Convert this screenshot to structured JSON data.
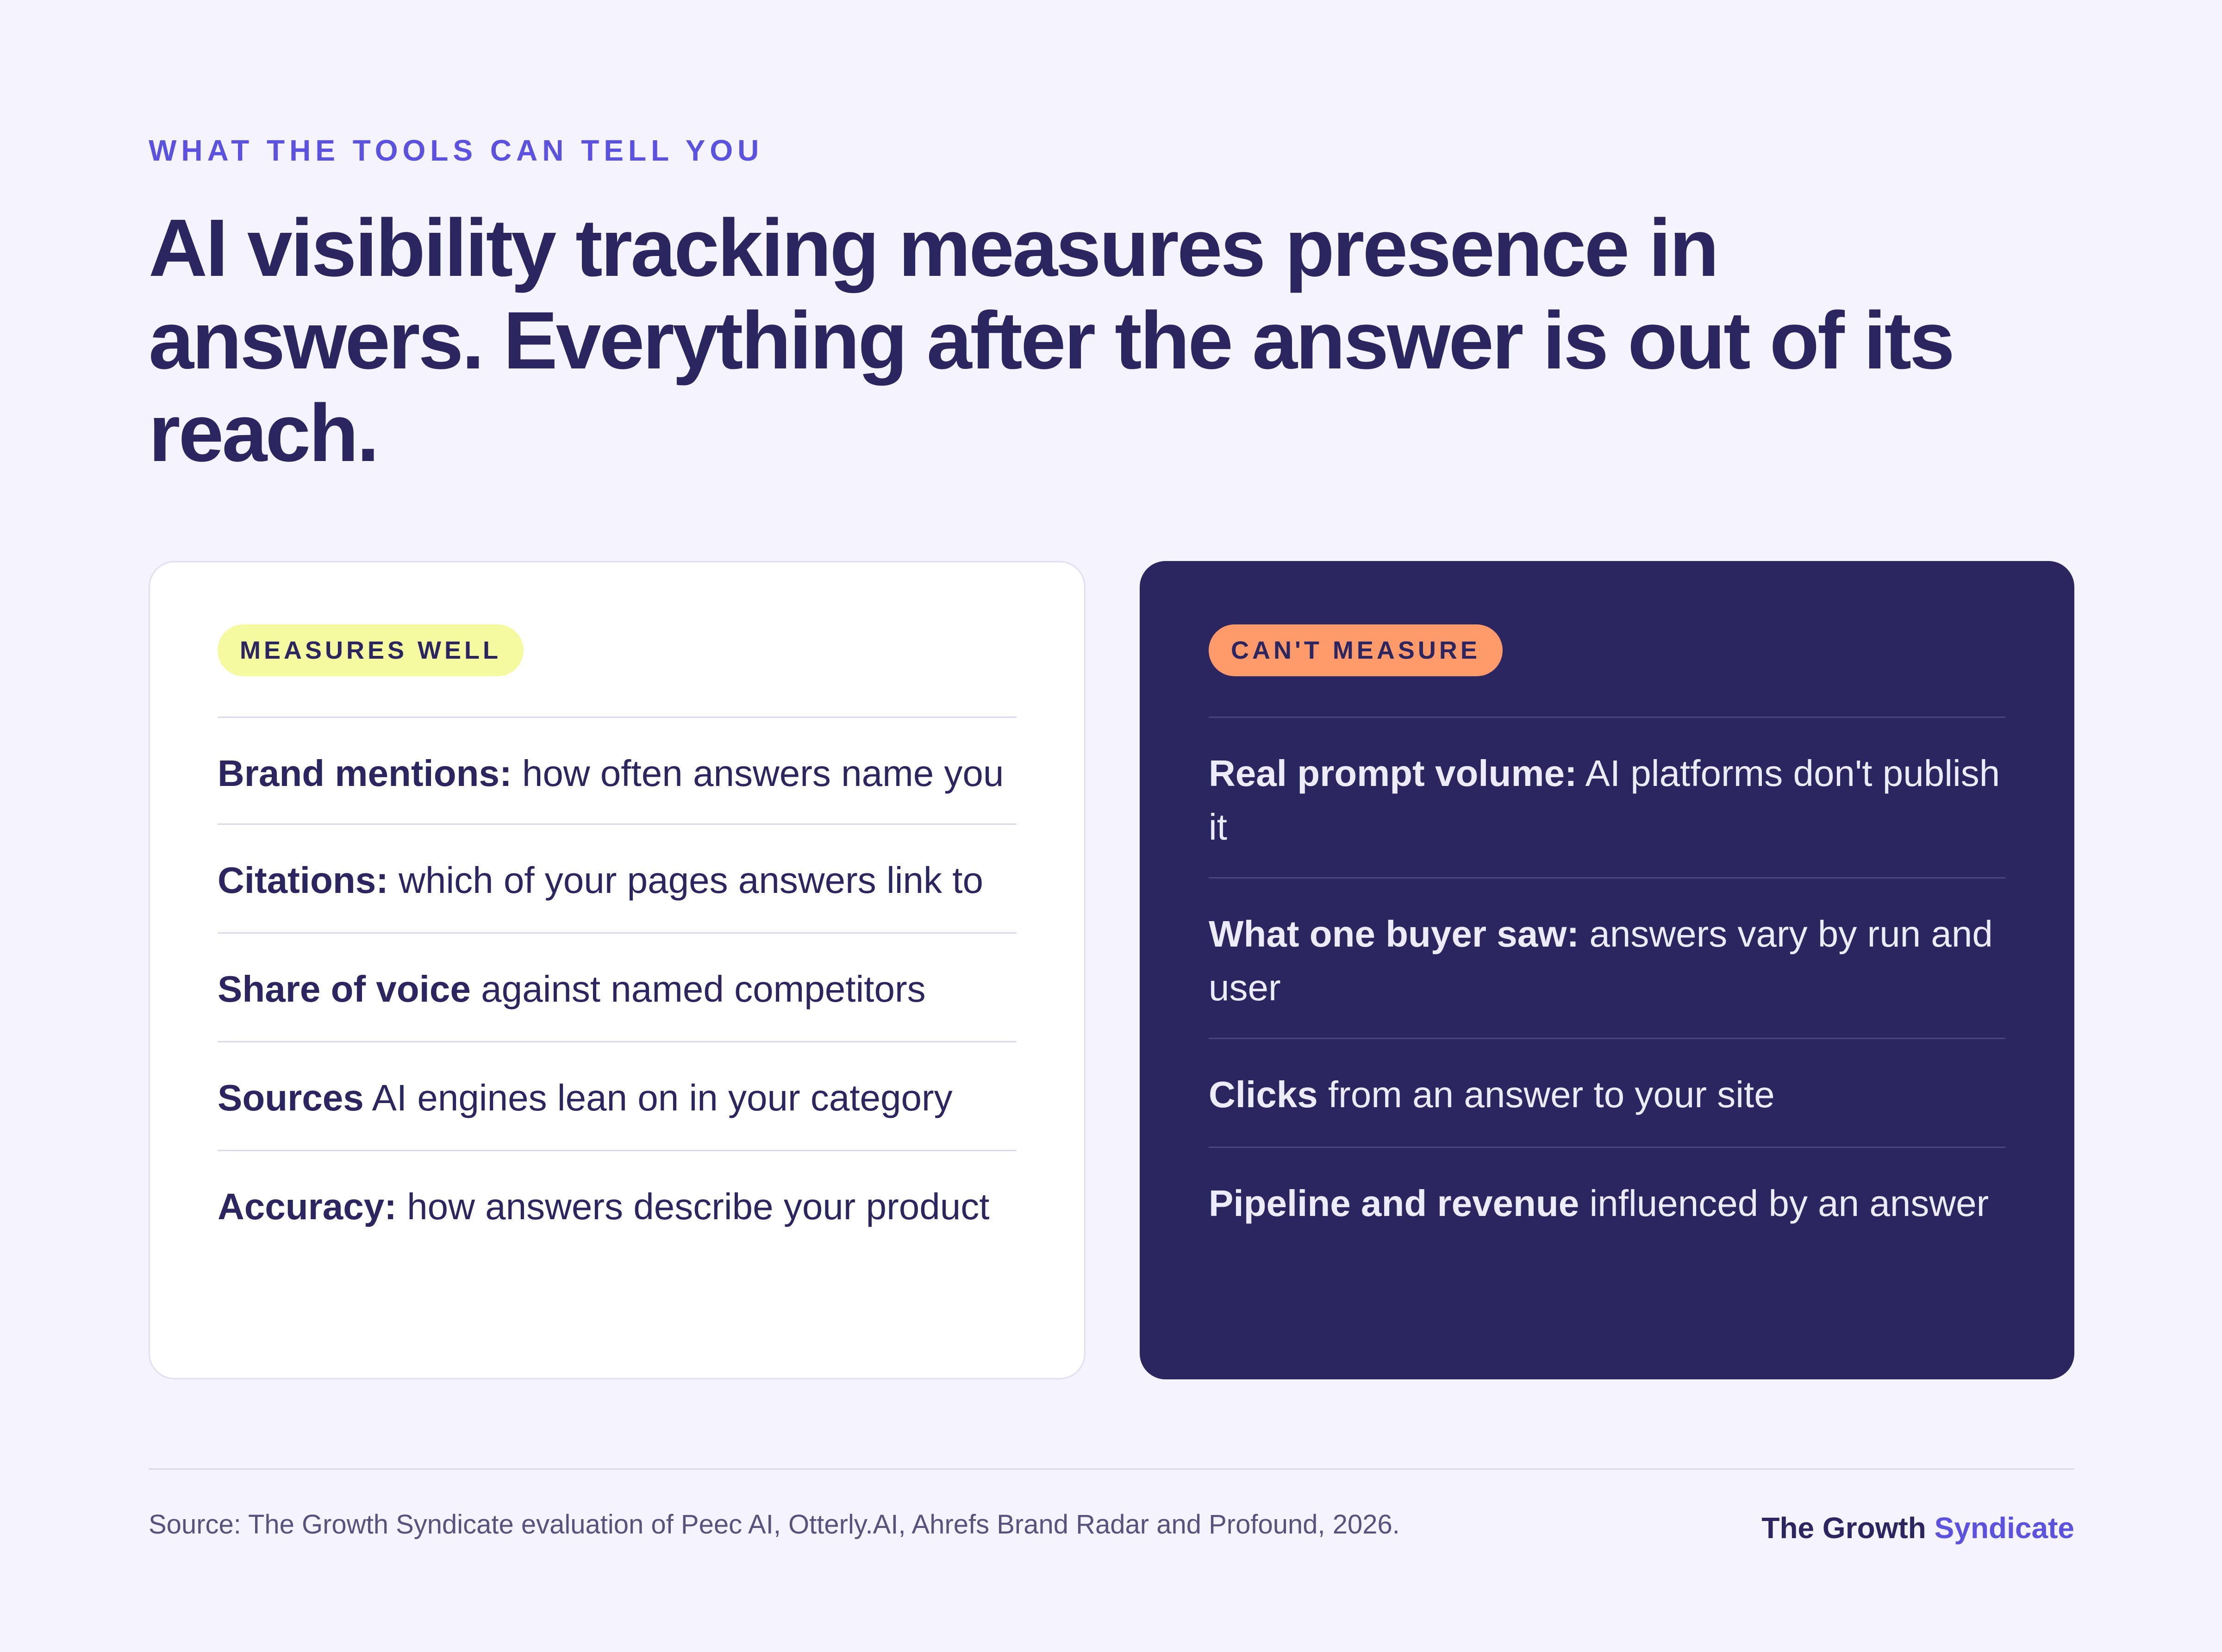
{
  "eyebrow": "WHAT THE TOOLS CAN TELL YOU",
  "headline": "AI visibility tracking measures presence in answers. Everything after the answer is out of its reach.",
  "measures_well": {
    "badge": "MEASURES WELL",
    "items": [
      {
        "term": "Brand mentions:",
        "rest": " how often answers name you"
      },
      {
        "term": "Citations:",
        "rest": " which of your pages answers link to"
      },
      {
        "term": "Share of voice",
        "rest": " against named competitors"
      },
      {
        "term": "Sources",
        "rest": " AI engines lean on in your category"
      },
      {
        "term": "Accuracy:",
        "rest": " how answers describe your product"
      }
    ]
  },
  "cant_measure": {
    "badge": "CAN'T MEASURE",
    "items": [
      {
        "term": "Real prompt volume:",
        "rest": " AI platforms don't publish it"
      },
      {
        "term": "What one buyer saw:",
        "rest": " answers vary by run and user"
      },
      {
        "term": "Clicks",
        "rest": " from an answer to your site"
      },
      {
        "term": "Pipeline and revenue",
        "rest": " influenced by an answer"
      }
    ]
  },
  "footer": {
    "source": "Source: The Growth Syndicate evaluation of Peec AI, Otterly.AI, Ahrefs Brand Radar and Profound, 2026.",
    "brand_part1": "The Growth",
    "brand_part2": "Syndicate"
  },
  "colors": {
    "background": "#F5F3FD",
    "navy": "#2B2660",
    "accent": "#5B52E0",
    "badge_yellow": "#F5FAA0",
    "badge_orange": "#FF9A6B"
  }
}
